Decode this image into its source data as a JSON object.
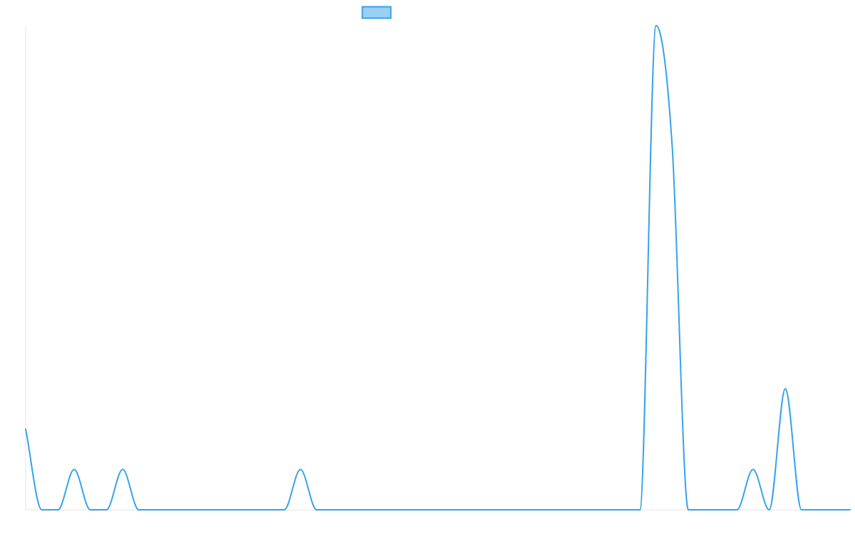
{
  "chart_data": {
    "type": "line",
    "title": "",
    "xlabel": "",
    "ylabel": "",
    "x": [
      0,
      1,
      2,
      3,
      4,
      5,
      6,
      7,
      8,
      9,
      10,
      11,
      12,
      13,
      14,
      15,
      16,
      17,
      18,
      19,
      20,
      21,
      22,
      23,
      24,
      25,
      26,
      27,
      28,
      29,
      30,
      31,
      32,
      33,
      34,
      35,
      36,
      37,
      38,
      39,
      40,
      41,
      42,
      43,
      44,
      45,
      46,
      47,
      48,
      49,
      50,
      51
    ],
    "ylim": [
      0,
      12
    ],
    "grid": false,
    "legend": "top-center",
    "series": [
      {
        "color": "#36a2eb",
        "fill_color": "#9ad0f5",
        "values": [
          2,
          0,
          0,
          1,
          0,
          0,
          1,
          0,
          0,
          0,
          0,
          0,
          0,
          0,
          0,
          0,
          0,
          1,
          0,
          0,
          0,
          0,
          0,
          0,
          0,
          0,
          0,
          0,
          0,
          0,
          0,
          0,
          0,
          0,
          0,
          0,
          0,
          0,
          0,
          12,
          9,
          0,
          0,
          0,
          0,
          1,
          0,
          3,
          0,
          0,
          0,
          0
        ]
      }
    ]
  }
}
